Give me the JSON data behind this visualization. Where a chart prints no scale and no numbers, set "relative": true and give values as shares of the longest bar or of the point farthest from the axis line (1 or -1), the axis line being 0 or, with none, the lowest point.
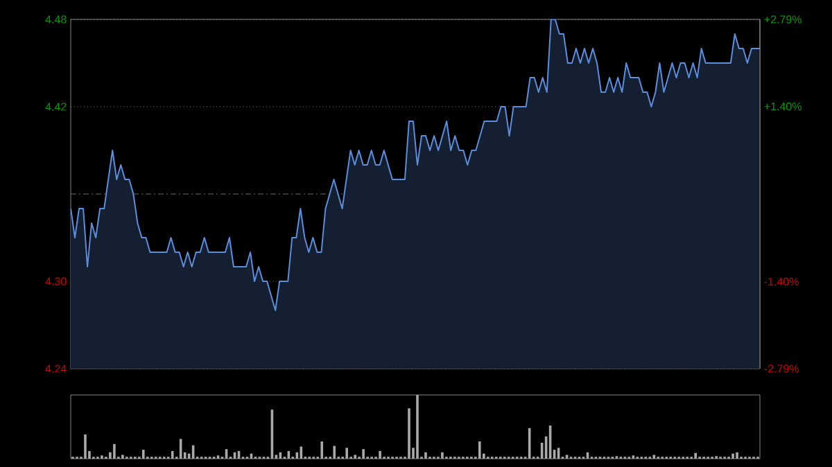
{
  "chart_data": [
    {
      "type": "area",
      "categories": [
        null,
        null,
        null,
        null,
        null,
        null,
        null,
        null,
        null,
        null,
        null,
        null,
        null,
        null,
        null,
        null,
        null,
        null,
        null,
        null,
        null,
        null,
        null,
        null,
        null,
        null,
        null,
        null,
        null,
        null,
        null,
        null,
        null,
        null,
        null,
        null,
        null,
        null,
        null,
        null,
        null,
        null,
        null,
        null,
        null,
        null,
        null,
        null,
        null,
        null,
        null,
        null,
        null,
        null,
        null,
        null,
        null,
        null,
        null,
        null,
        null,
        null,
        null,
        null,
        null,
        null,
        null,
        null,
        null,
        null,
        null,
        null,
        null,
        null,
        null,
        null,
        null,
        null,
        null,
        null,
        null,
        null,
        null,
        null,
        null,
        null,
        null,
        null,
        null,
        null,
        null,
        null,
        null,
        null,
        null,
        null,
        null,
        null,
        null,
        null,
        null,
        null,
        null,
        null,
        null,
        null,
        null,
        null,
        null,
        null,
        null,
        null,
        null,
        null,
        null,
        null,
        null,
        null,
        null,
        null,
        null,
        null,
        null,
        null,
        null,
        null,
        null,
        null,
        null,
        null,
        null,
        null,
        null,
        null,
        null,
        null,
        null,
        null,
        null,
        null,
        null,
        null,
        null,
        null,
        null,
        null,
        null,
        null,
        null,
        null,
        null,
        null,
        null,
        null,
        null,
        null,
        null,
        null,
        null,
        null,
        null,
        null,
        null,
        null,
        null,
        null
      ],
      "series": [
        {
          "color": "#5b8ede",
          "values": [
            4.35,
            4.33,
            4.35,
            4.35,
            4.31,
            4.34,
            4.33,
            4.35,
            4.35,
            4.37,
            4.39,
            4.37,
            4.38,
            4.37,
            4.37,
            4.36,
            4.34,
            4.33,
            4.33,
            4.32,
            4.32,
            4.32,
            4.32,
            4.32,
            4.33,
            4.32,
            4.32,
            4.31,
            4.32,
            4.31,
            4.32,
            4.32,
            4.33,
            4.32,
            4.32,
            4.32,
            4.32,
            4.32,
            4.33,
            4.31,
            4.31,
            4.31,
            4.31,
            4.32,
            4.3,
            4.31,
            4.3,
            4.3,
            4.29,
            4.28,
            4.3,
            4.3,
            4.3,
            4.33,
            4.33,
            4.35,
            4.33,
            4.32,
            4.33,
            4.32,
            4.32,
            4.35,
            4.36,
            4.37,
            4.36,
            4.35,
            4.37,
            4.39,
            4.38,
            4.39,
            4.38,
            4.38,
            4.39,
            4.38,
            4.38,
            4.39,
            4.38,
            4.37,
            4.37,
            4.37,
            4.37,
            4.41,
            4.41,
            4.38,
            4.4,
            4.4,
            4.39,
            4.4,
            4.39,
            4.4,
            4.41,
            4.39,
            4.4,
            4.39,
            4.39,
            4.38,
            4.39,
            4.39,
            4.4,
            4.41,
            4.41,
            4.41,
            4.41,
            4.42,
            4.42,
            4.4,
            4.42,
            4.42,
            4.42,
            4.42,
            4.44,
            4.44,
            4.43,
            4.44,
            4.43,
            4.48,
            4.48,
            4.47,
            4.47,
            4.45,
            4.45,
            4.46,
            4.45,
            4.46,
            4.45,
            4.46,
            4.45,
            4.43,
            4.43,
            4.44,
            4.43,
            4.44,
            4.43,
            4.45,
            4.44,
            4.44,
            4.44,
            4.43,
            4.43,
            4.42,
            4.43,
            4.45,
            4.43,
            4.44,
            4.45,
            4.44,
            4.45,
            4.45,
            4.44,
            4.45,
            4.44,
            4.46,
            4.45,
            4.45,
            4.45,
            4.45,
            4.45,
            4.45,
            4.45,
            4.47,
            4.46,
            4.46,
            4.45,
            4.46,
            4.46,
            4.46
          ]
        }
      ],
      "ylim": [
        4.24,
        4.48
      ],
      "yticks": [
        {
          "value": 4.24,
          "label": "4.24"
        },
        {
          "value": 4.3,
          "label": "4.30"
        },
        {
          "value": 4.42,
          "label": "4.42"
        },
        {
          "value": 4.48,
          "label": "4.48"
        }
      ],
      "y2lim": [
        -2.79,
        2.79
      ],
      "y2ticks": [
        {
          "value": -2.79,
          "label": "-2.79%"
        },
        {
          "value": -1.4,
          "label": "-1.40%"
        },
        {
          "value": 1.4,
          "label": "+1.40%"
        },
        {
          "value": 2.79,
          "label": "+2.79%"
        }
      ],
      "ref_lines": [
        {
          "axis": "y",
          "value": 4.36,
          "color": "#888888",
          "line_style": "dashed"
        }
      ],
      "grid": "y",
      "tick_labels": "y"
    },
    {
      "type": "bar",
      "relative": true,
      "tick_labels": false,
      "categories": [
        null,
        null,
        null,
        null,
        null,
        null,
        null,
        null,
        null,
        null,
        null,
        null,
        null,
        null,
        null,
        null,
        null,
        null,
        null,
        null,
        null,
        null,
        null,
        null,
        null,
        null,
        null,
        null,
        null,
        null,
        null,
        null,
        null,
        null,
        null,
        null,
        null,
        null,
        null,
        null,
        null,
        null,
        null,
        null,
        null,
        null,
        null,
        null,
        null,
        null,
        null,
        null,
        null,
        null,
        null,
        null,
        null,
        null,
        null,
        null,
        null,
        null,
        null,
        null,
        null,
        null,
        null,
        null,
        null,
        null,
        null,
        null,
        null,
        null,
        null,
        null,
        null,
        null,
        null,
        null,
        null,
        null,
        null,
        null,
        null,
        null,
        null,
        null,
        null,
        null,
        null,
        null,
        null,
        null,
        null,
        null,
        null,
        null,
        null,
        null,
        null,
        null,
        null,
        null,
        null,
        null,
        null,
        null,
        null,
        null,
        null,
        null,
        null,
        null,
        null,
        null,
        null,
        null,
        null,
        null,
        null,
        null,
        null,
        null,
        null,
        null,
        null,
        null,
        null,
        null,
        null,
        null,
        null,
        null,
        null,
        null,
        null,
        null,
        null,
        null,
        null,
        null,
        null,
        null,
        null,
        null,
        null,
        null,
        null,
        null,
        null,
        null,
        null,
        null,
        null,
        null,
        null,
        null,
        null,
        null,
        null,
        null,
        null,
        null,
        null,
        null
      ],
      "series": [
        {
          "color": "#aaaaaa",
          "values": [
            0.03,
            0.03,
            0.03,
            0.38,
            0.12,
            0.03,
            0.03,
            0.05,
            0.03,
            0.1,
            0.23,
            0.03,
            0.06,
            0.03,
            0.03,
            0.03,
            0.03,
            0.14,
            0.03,
            0.03,
            0.03,
            0.03,
            0.03,
            0.03,
            0.12,
            0.03,
            0.31,
            0.1,
            0.08,
            0.21,
            0.03,
            0.03,
            0.03,
            0.03,
            0.03,
            0.05,
            0.03,
            0.15,
            0.03,
            0.1,
            0.12,
            0.03,
            0.03,
            0.08,
            0.03,
            0.03,
            0.03,
            0.03,
            0.77,
            0.06,
            0.1,
            0.03,
            0.12,
            0.03,
            0.1,
            0.19,
            0.03,
            0.03,
            0.03,
            0.03,
            0.27,
            0.03,
            0.03,
            0.2,
            0.03,
            0.03,
            0.17,
            0.03,
            0.06,
            0.03,
            0.15,
            0.03,
            0.03,
            0.03,
            0.12,
            0.03,
            0.03,
            0.03,
            0.03,
            0.03,
            0.03,
            0.79,
            0.17,
            1,
            0.03,
            0.1,
            0.03,
            0.03,
            0.03,
            0.1,
            0.03,
            0.03,
            0.03,
            0.03,
            0.03,
            0.03,
            0.03,
            0.03,
            0.27,
            0.08,
            0.03,
            0.03,
            0.03,
            0.03,
            0.03,
            0.03,
            0.03,
            0.03,
            0.03,
            0.03,
            0.48,
            0.03,
            0.03,
            0.25,
            0.35,
            0.52,
            0.14,
            0.17,
            0.03,
            0.06,
            0.03,
            0.03,
            0.03,
            0.03,
            0.1,
            0.03,
            0.03,
            0.03,
            0.03,
            0.03,
            0.03,
            0.04,
            0.03,
            0.03,
            0.03,
            0.05,
            0.03,
            0.03,
            0.03,
            0.03,
            0.06,
            0.03,
            0.03,
            0.03,
            0.03,
            0.03,
            0.03,
            0.03,
            0.03,
            0.03,
            0.09,
            0.03,
            0.03,
            0.03,
            0.03,
            0.04,
            0.03,
            0.03,
            0.03,
            0.08,
            0.1,
            0.03,
            0.03,
            0.03,
            0.03,
            0.03
          ]
        }
      ]
    }
  ]
}
